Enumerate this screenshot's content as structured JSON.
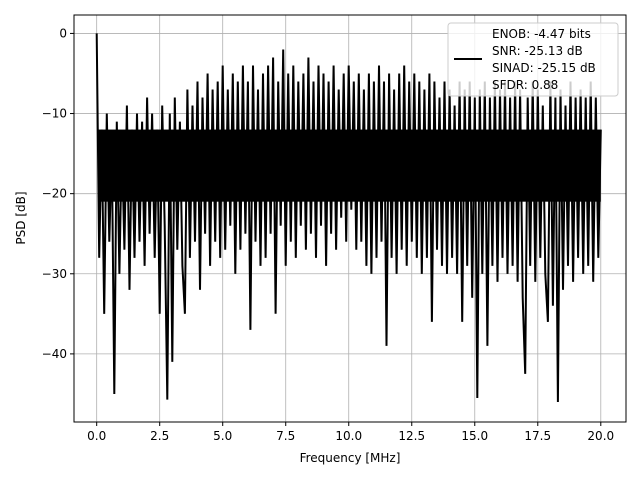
{
  "chart_data": {
    "type": "line",
    "title": "",
    "xlabel": "Frequency [MHz]",
    "ylabel": "PSD [dB]",
    "xlim": [
      -0.9,
      21.0
    ],
    "ylim": [
      -48.5,
      2.3
    ],
    "grid": true,
    "xticks": [
      0,
      2.5,
      5,
      7.5,
      10,
      12.5,
      15,
      17.5,
      20
    ],
    "xtick_labels": [
      "0.0",
      "2.5",
      "5.0",
      "7.5",
      "10.0",
      "12.5",
      "15.0",
      "17.5",
      "20.0"
    ],
    "yticks": [
      0,
      -10,
      -20,
      -30,
      -40
    ],
    "ytick_labels": [
      "0",
      "−10",
      "−20",
      "−30",
      "−40"
    ],
    "legend": {
      "placement": "top-right",
      "entries": [
        "ENOB: -4.47 bits",
        "SNR: -25.13 dB",
        "SINAD: -25.15 dB",
        "SFDR: 0.88"
      ]
    },
    "series": [
      {
        "name": "PSD",
        "color": "#000000",
        "x_start": 0.0,
        "x_step": 0.1,
        "values": [
          0,
          -28,
          -12,
          -35,
          -10,
          -26,
          -14,
          -45,
          -11,
          -30,
          -13,
          -27,
          -9,
          -32,
          -12,
          -28,
          -10,
          -26,
          -11,
          -29,
          -8,
          -25,
          -10,
          -28,
          -12,
          -35,
          -9,
          -24,
          -45.7,
          -10,
          -41,
          -8,
          -27,
          -11,
          -29,
          -35,
          -7,
          -28,
          -9,
          -26,
          -6,
          -32,
          -8,
          -25,
          -5,
          -29,
          -7,
          -26,
          -6,
          -28,
          -4,
          -27,
          -7,
          -24,
          -5,
          -30,
          -6,
          -27,
          -4,
          -25,
          -6,
          -37,
          -4,
          -26,
          -7,
          -29,
          -5,
          -28,
          -4,
          -25,
          -3,
          -35,
          -6,
          -24,
          -2,
          -29,
          -5,
          -26,
          -4,
          -28,
          -6,
          -24,
          -5,
          -27,
          -3,
          -25,
          -6,
          -28,
          -4,
          -24,
          -5,
          -29,
          -6,
          -25,
          -4,
          -27,
          -7,
          -23,
          -5,
          -26,
          -4,
          -22,
          -6,
          -27,
          -5,
          -26,
          -7,
          -29,
          -5,
          -30,
          -6,
          -28,
          -4,
          -26,
          -6,
          -39,
          -5,
          -28,
          -7,
          -30,
          -5,
          -27,
          -4,
          -29,
          -6,
          -26,
          -5,
          -28,
          -6,
          -30,
          -7,
          -28,
          -5,
          -36,
          -6,
          -27,
          -8,
          -29,
          -6,
          -30,
          -7,
          -28,
          -9,
          -30,
          -6,
          -36,
          -7,
          -29,
          -6,
          -33,
          -8,
          -45.5,
          -7,
          -30,
          -6,
          -39,
          -8,
          -29,
          -6,
          -31,
          -7,
          -28,
          -6,
          -30,
          -8,
          -29,
          -6,
          -31,
          -7,
          -33,
          -42.5,
          -8,
          -29,
          -6,
          -31,
          -7,
          -28,
          -9,
          -30,
          -36,
          -6,
          -34,
          -8,
          -46,
          -7,
          -32,
          -9,
          -29,
          -6,
          -31,
          -8,
          -28,
          -7,
          -30,
          -8,
          -29,
          -6,
          -31,
          -8,
          -28,
          -12
        ]
      }
    ]
  }
}
